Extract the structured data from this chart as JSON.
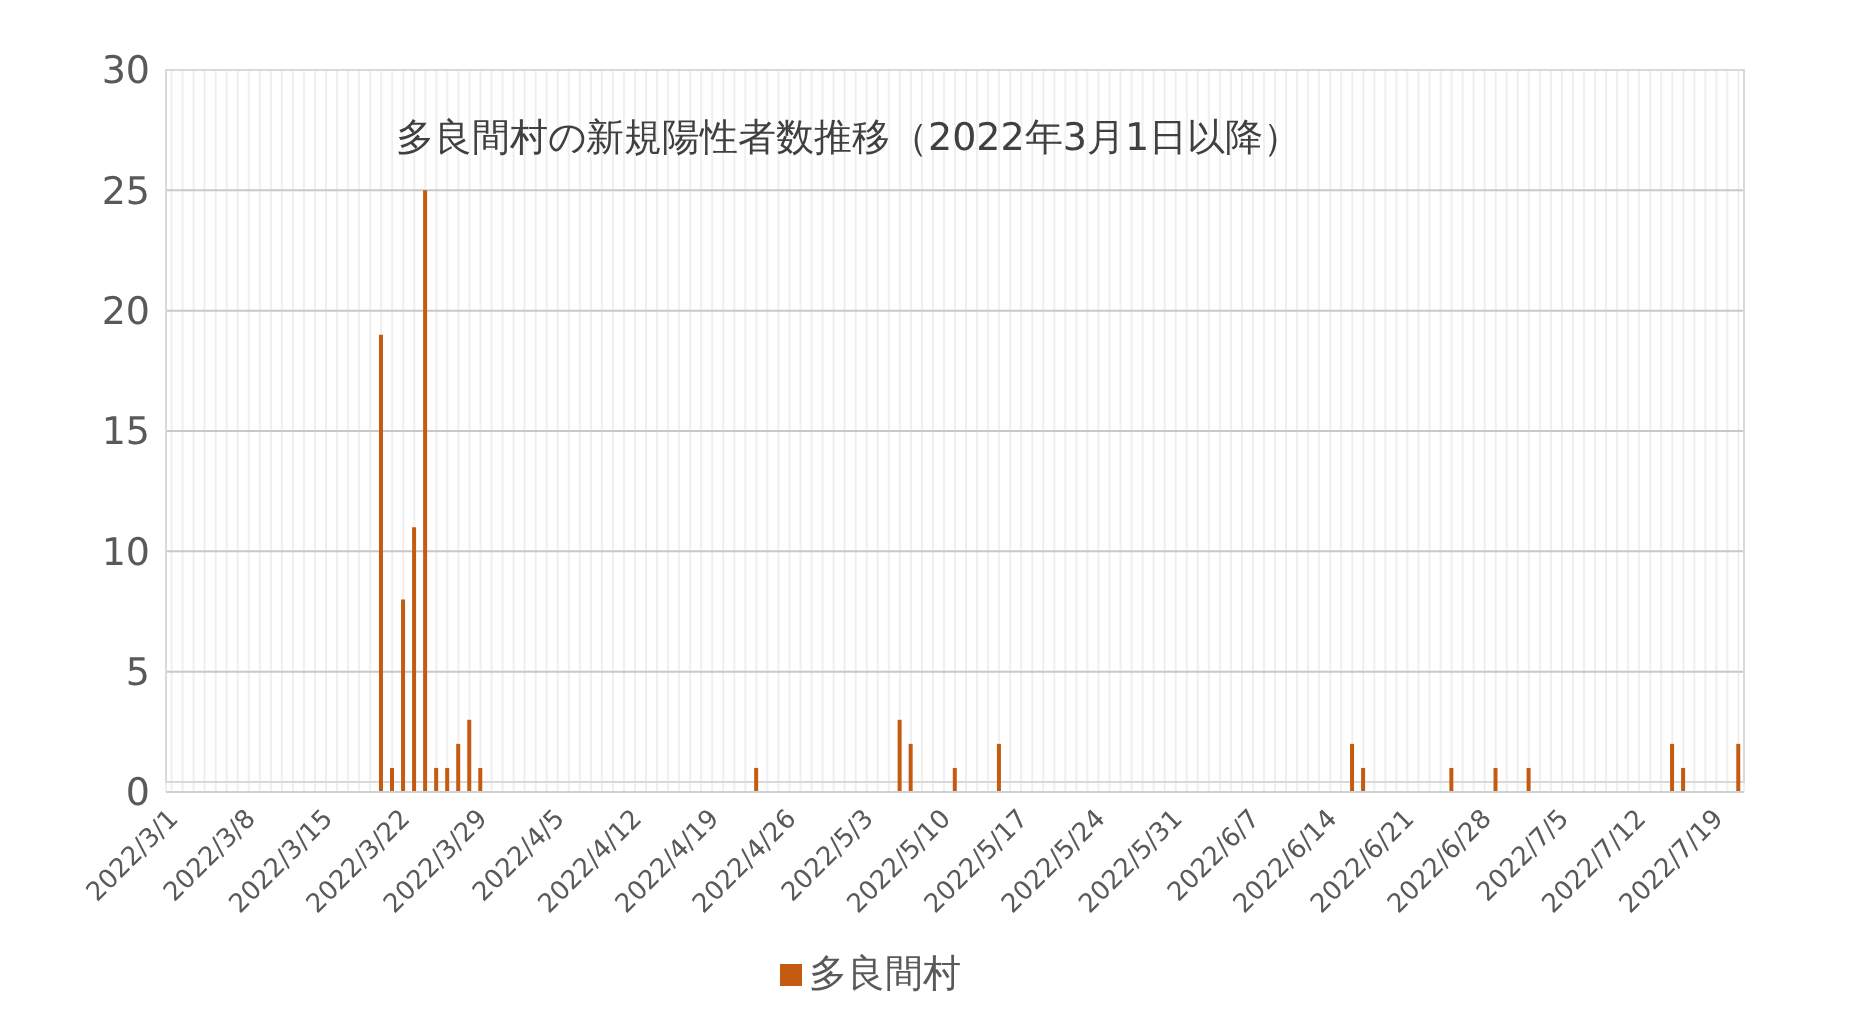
{
  "chart_data": {
    "type": "bar",
    "title": "多良間村の新規陽性者数推移（2022年3月1日以降）",
    "categories": [
      "2022/3/1",
      null,
      null,
      null,
      null,
      null,
      null,
      "2022/3/8",
      null,
      null,
      null,
      null,
      null,
      null,
      "2022/3/15",
      null,
      null,
      null,
      null,
      null,
      null,
      "2022/3/22",
      null,
      null,
      null,
      null,
      null,
      null,
      "2022/3/29",
      null,
      null,
      null,
      null,
      null,
      null,
      "2022/4/5",
      null,
      null,
      null,
      null,
      null,
      null,
      "2022/4/12",
      null,
      null,
      null,
      null,
      null,
      null,
      "2022/4/19",
      null,
      null,
      null,
      null,
      null,
      null,
      "2022/4/26",
      null,
      null,
      null,
      null,
      null,
      null,
      "2022/5/3",
      null,
      null,
      null,
      null,
      null,
      null,
      "2022/5/10",
      null,
      null,
      null,
      null,
      null,
      null,
      "2022/5/17",
      null,
      null,
      null,
      null,
      null,
      null,
      "2022/5/24",
      null,
      null,
      null,
      null,
      null,
      null,
      "2022/5/31",
      null,
      null,
      null,
      null,
      null,
      null,
      "2022/6/7",
      null,
      null,
      null,
      null,
      null,
      null,
      "2022/6/14",
      null,
      null,
      null,
      null,
      null,
      null,
      "2022/6/21",
      null,
      null,
      null,
      null,
      null,
      null,
      "2022/6/28",
      null,
      null,
      null,
      null,
      null,
      null,
      "2022/7/5",
      null,
      null,
      null,
      null,
      null,
      null,
      "2022/7/12",
      null,
      null,
      null,
      null,
      null,
      null,
      "2022/7/19",
      null,
      null
    ],
    "series": [
      {
        "name": "多良間村",
        "color": "#c55a11",
        "values": [
          0,
          0,
          0,
          0,
          0,
          0,
          0,
          0,
          0,
          0,
          0,
          0,
          0,
          0,
          0,
          0,
          0,
          0,
          0,
          19,
          1,
          8,
          11,
          25,
          1,
          1,
          2,
          3,
          1,
          0,
          0,
          0,
          0,
          0,
          0,
          0,
          0,
          0,
          0,
          0,
          0,
          0,
          0,
          0,
          0,
          0,
          0,
          0,
          0,
          0,
          0,
          0,
          0,
          1,
          0,
          0,
          0,
          0,
          0,
          0,
          0,
          0,
          0,
          0,
          0,
          0,
          3,
          2,
          0,
          0,
          0,
          1,
          0,
          0,
          0,
          2,
          0,
          0,
          0,
          0,
          0,
          0,
          0,
          0,
          0,
          0,
          0,
          0,
          0,
          0,
          0,
          0,
          0,
          0,
          0,
          0,
          0,
          0,
          0,
          0,
          0,
          0,
          0,
          0,
          0,
          0,
          0,
          2,
          1,
          0,
          0,
          0,
          0,
          0,
          0,
          0,
          1,
          0,
          0,
          0,
          1,
          0,
          0,
          1,
          0,
          0,
          0,
          0,
          0,
          0,
          0,
          0,
          0,
          0,
          0,
          0,
          2,
          1,
          0,
          0,
          0,
          0,
          2
        ]
      }
    ],
    "ylim": [
      0,
      30
    ],
    "yticks": [
      0,
      5,
      10,
      15,
      20,
      25,
      30
    ],
    "grid": true,
    "legend": "bottom"
  }
}
